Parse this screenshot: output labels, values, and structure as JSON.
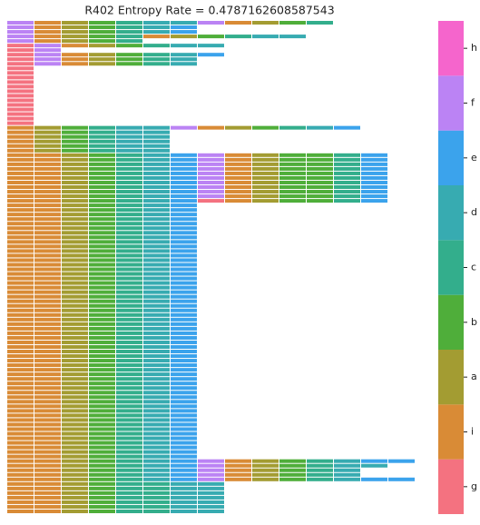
{
  "chart_data": {
    "type": "symbol-grid",
    "title": "R402 Entropy Rate = 0.4787162608587543",
    "categories": [
      "g",
      "i",
      "a",
      "b",
      "c",
      "d",
      "e",
      "f",
      "h"
    ],
    "colors": {
      "g": "#f47280",
      "i": "#d98b36",
      "a": "#a39c32",
      "b": "#4fae3a",
      "c": "#33ae8c",
      "d": "#37abb1",
      "e": "#3ba3ec",
      "f": "#bb83f4",
      "h": "#f565cc"
    },
    "rows": [
      "fiabcddfiabc",
      "fiabcde",
      "fiabcde",
      "fiabciabcdd",
      "fiabc",
      "gfiabcdd",
      "gf",
      "gfiabcde",
      "gfiabcd",
      "gfiabcd",
      "g",
      "g",
      "g",
      "g",
      "g",
      "g",
      "g",
      "g",
      "g",
      "g",
      "g",
      "g",
      "g",
      "iabcddfiabcde",
      "iabcdd",
      "iabcdd",
      "iabcdd",
      "iabcdd",
      "iabcdd",
      "iiabcdefiabbce",
      "iiabcdefiabbce",
      "iiabcdefiabbce",
      "iiabcdefiabbce",
      "iiabcdefiabbce",
      "iiabcdefiabbce",
      "iiabcdefiabbce",
      "iiabcdefiabbce",
      "iiabcdefiabbce",
      "iiabcdefiabbce",
      "iiabcdegiabbce",
      "iiabcde",
      "iiabcde",
      "iiabcde",
      "iiabcde",
      "iiabcde",
      "iiabcde",
      "iiabcde",
      "iiabcde",
      "iiabcde",
      "iiabcde",
      "iiabcde",
      "iiabcde",
      "iiabcde",
      "iiabcde",
      "iiabcde",
      "iiabcde",
      "iiabcde",
      "iiabcde",
      "iiabcde",
      "iiabcde",
      "iiabcde",
      "iiabcde",
      "iiabcde",
      "iiabcde",
      "iiabcde",
      "iiabcde",
      "iiabcde",
      "iiabcde",
      "iiabcde",
      "iiabcde",
      "iiabcde",
      "iiabcde",
      "iiabcde",
      "iiabcde",
      "iiabcde",
      "iiabcde",
      "iiabcde",
      "iiabcde",
      "iiabcde",
      "iiabcde",
      "iiabcde",
      "iiabcde",
      "iiabcde",
      "iiabcde",
      "iiabcde",
      "iiabcde",
      "iiabcde",
      "iiabcde",
      "iiabcde",
      "iiabcde",
      "iiabcde",
      "iiabcde",
      "iiabcde",
      "iiabcde",
      "iiabcde",
      "iiabcde",
      "iiabcdefiabcdee",
      "iiabcdefiabcdd",
      "iiabcdefiabcd",
      "iiabcdefiabcd",
      "iiabcdefiabcdee",
      "iiabccdd",
      "iiabccdd",
      "iiabccdd",
      "iiabccdd",
      "iiabccdd",
      "iiabccdd",
      "iiabccdd"
    ]
  }
}
